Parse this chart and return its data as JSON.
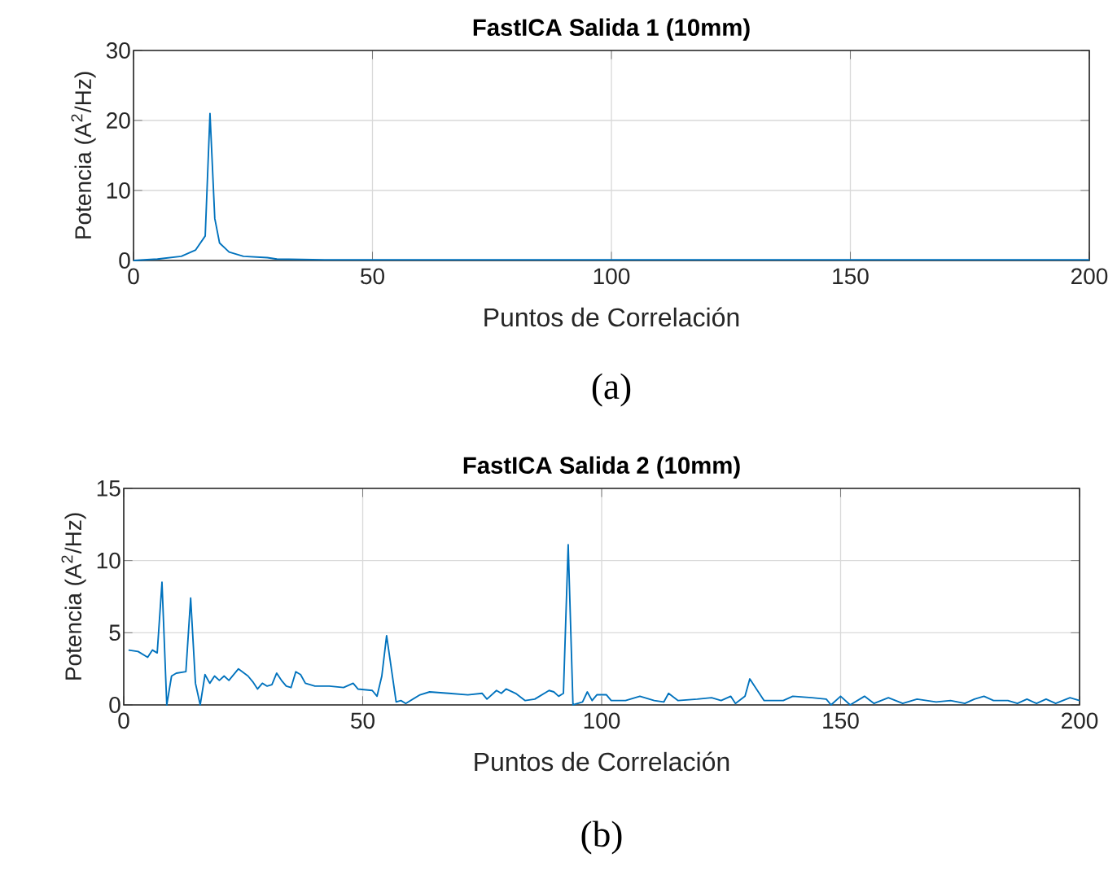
{
  "chart_data": [
    {
      "type": "line",
      "title": "FastICA Salida 1 (10mm)",
      "xlabel": "Puntos de Correlación",
      "ylabel": "Potencia (A$^{2}$/Hz)",
      "annotations": [
        "(a)"
      ],
      "x": [
        0,
        5,
        10,
        13,
        15,
        16,
        17,
        18,
        20,
        23,
        28,
        30,
        40,
        60,
        100,
        150,
        200
      ],
      "series": [
        {
          "color": "#0072bd",
          "values": [
            0,
            0.2,
            0.6,
            1.5,
            3.5,
            21,
            6,
            2.5,
            1.2,
            0.6,
            0.4,
            0.2,
            0.1,
            0.1,
            0.1,
            0.1,
            0.1
          ]
        }
      ],
      "xlim": [
        0,
        200
      ],
      "ylim": [
        0,
        30
      ],
      "xticks": [
        0,
        50,
        100,
        150,
        200
      ],
      "yticks": [
        0,
        10,
        20,
        30
      ],
      "grid": true
    },
    {
      "type": "line",
      "title": "FastICA Salida 2 (10mm)",
      "xlabel": "Puntos de Correlación",
      "ylabel": "Potencia (A$^{2}$/Hz)",
      "annotations": [
        "(b)"
      ],
      "x": [
        1,
        3,
        5,
        6,
        7,
        8,
        9,
        10,
        11,
        13,
        14,
        15,
        16,
        17,
        18,
        19,
        20,
        21,
        22,
        24,
        26,
        27,
        28,
        29,
        30,
        31,
        32,
        33,
        34,
        35,
        36,
        37,
        38,
        40,
        43,
        46,
        48,
        49,
        52,
        53,
        54,
        55,
        56,
        57,
        58,
        59,
        62,
        64,
        68,
        72,
        75,
        76,
        78,
        79,
        80,
        82,
        84,
        86,
        89,
        90,
        91,
        92,
        93,
        94,
        96,
        97,
        98,
        99,
        101,
        102,
        105,
        108,
        111,
        113,
        114,
        116,
        120,
        123,
        125,
        127,
        128,
        130,
        131,
        132,
        134,
        138,
        140,
        144,
        147,
        148,
        150,
        152,
        155,
        157,
        160,
        163,
        166,
        170,
        173,
        176,
        178,
        180,
        182,
        185,
        187,
        189,
        191,
        193,
        195,
        198,
        200
      ],
      "series": [
        {
          "color": "#0072bd",
          "values": [
            3.8,
            3.7,
            3.3,
            3.8,
            3.6,
            8.5,
            0,
            2.0,
            2.2,
            2.3,
            7.4,
            1.5,
            0,
            2.1,
            1.5,
            2.0,
            1.7,
            2.0,
            1.7,
            2.5,
            2.0,
            1.6,
            1.1,
            1.5,
            1.3,
            1.4,
            2.2,
            1.7,
            1.3,
            1.2,
            2.3,
            2.1,
            1.5,
            1.3,
            1.3,
            1.2,
            1.5,
            1.1,
            1.0,
            0.6,
            2.0,
            4.8,
            2.5,
            0.2,
            0.3,
            0.1,
            0.7,
            0.9,
            0.8,
            0.7,
            0.8,
            0.4,
            1.0,
            0.8,
            1.1,
            0.8,
            0.3,
            0.4,
            1.0,
            0.9,
            0.6,
            0.8,
            11.1,
            0,
            0.2,
            0.9,
            0.3,
            0.7,
            0.7,
            0.3,
            0.3,
            0.6,
            0.3,
            0.2,
            0.8,
            0.3,
            0.4,
            0.5,
            0.3,
            0.6,
            0.1,
            0.6,
            1.8,
            1.3,
            0.3,
            0.3,
            0.6,
            0.5,
            0.4,
            0,
            0.6,
            0,
            0.6,
            0.1,
            0.5,
            0.1,
            0.4,
            0.2,
            0.3,
            0.1,
            0.4,
            0.6,
            0.3,
            0.3,
            0.1,
            0.4,
            0.1,
            0.4,
            0.1,
            0.5,
            0.3
          ]
        }
      ],
      "xlim": [
        0,
        200
      ],
      "ylim": [
        0,
        15
      ],
      "xticks": [
        0,
        50,
        100,
        150,
        200
      ],
      "yticks": [
        0,
        5,
        10,
        15
      ],
      "grid": true
    }
  ]
}
